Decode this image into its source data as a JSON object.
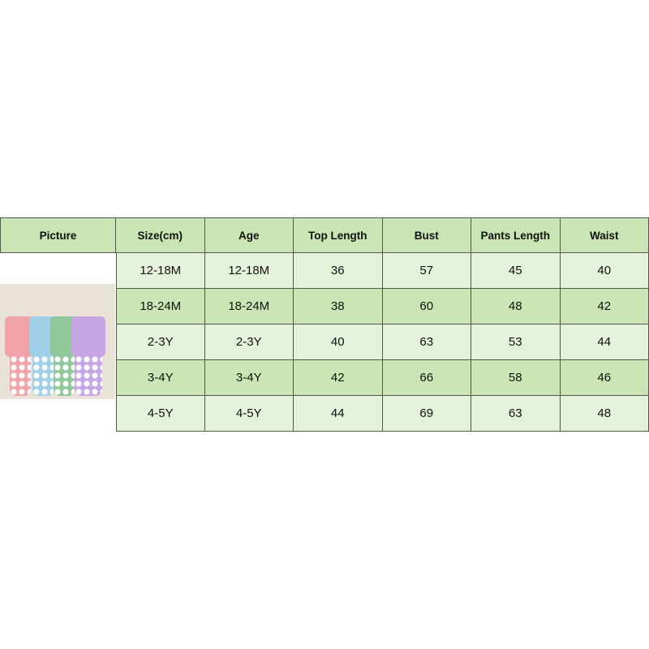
{
  "headers": [
    "Picture",
    "Size(cm)",
    "Age",
    "Top Length",
    "Bust",
    "Pants Length",
    "Waist"
  ],
  "rows": [
    [
      "12-18M",
      "12-18M",
      "36",
      "57",
      "45",
      "40"
    ],
    [
      "18-24M",
      "18-24M",
      "38",
      "60",
      "48",
      "42"
    ],
    [
      "2-3Y",
      "2-3Y",
      "40",
      "63",
      "53",
      "44"
    ],
    [
      "3-4Y",
      "3-4Y",
      "42",
      "66",
      "58",
      "46"
    ],
    [
      "4-5Y",
      "4-5Y",
      "44",
      "69",
      "63",
      "48"
    ]
  ],
  "colors": {
    "header": "#c8e5b3",
    "row_light": "#e4f2da",
    "row_dark": "#c9e6b4"
  },
  "picture": {
    "outfit_colors": [
      "#f1a3a8",
      "#9fd0e8",
      "#8fc79a",
      "#c8a6e6"
    ]
  }
}
